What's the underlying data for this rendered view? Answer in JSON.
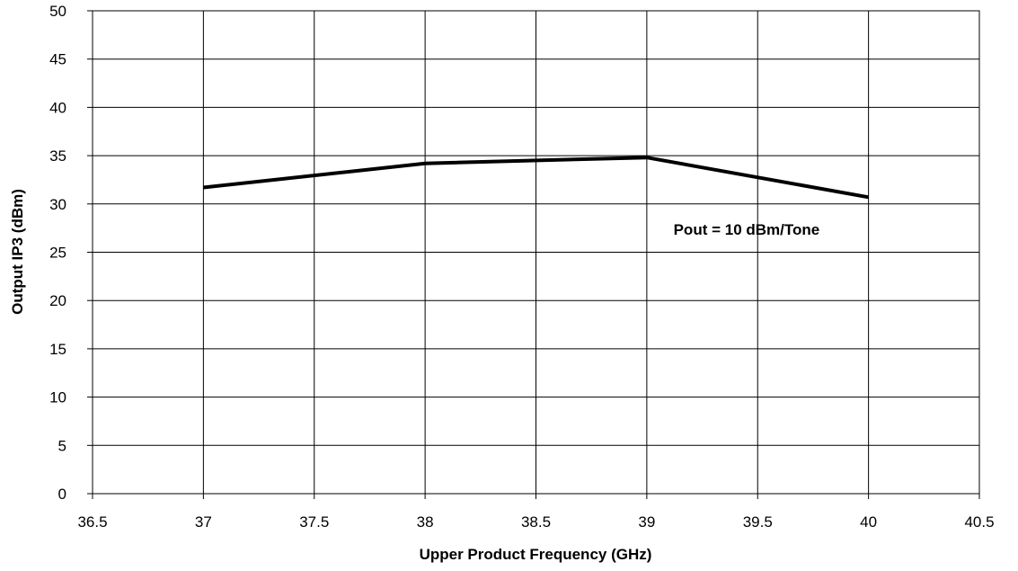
{
  "chart_data": {
    "type": "line",
    "title": "",
    "xlabel": "Upper Product Frequency (GHz)",
    "ylabel": "Output IP3 (dBm)",
    "xlim": [
      36.5,
      40.5
    ],
    "ylim": [
      0,
      50
    ],
    "xticks": [
      "36.5",
      "37",
      "37.5",
      "38",
      "38.5",
      "39",
      "39.5",
      "40",
      "40.5"
    ],
    "yticks": [
      "0",
      "5",
      "10",
      "15",
      "20",
      "25",
      "30",
      "35",
      "40",
      "45",
      "50"
    ],
    "grid": true,
    "legend": "none",
    "series": [
      {
        "x": [
          37,
          38,
          39,
          40
        ],
        "y": [
          31.7,
          34.2,
          34.8,
          30.7
        ],
        "color": "#000000"
      }
    ],
    "annotations": [
      {
        "text": "Pout = 10 dBm/Tone",
        "x": 39.45,
        "y": 26.8
      }
    ]
  }
}
